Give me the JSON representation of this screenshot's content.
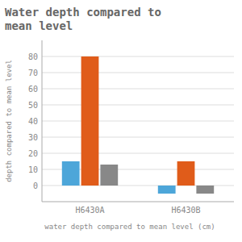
{
  "chart_data": {
    "type": "bar",
    "title": "Water depth compared to\nmean level",
    "xlabel": "water depth compared to mean level (cm)",
    "ylabel": "depth compared to mean level",
    "categories": [
      "H6430A",
      "H6430B"
    ],
    "series": [
      {
        "color": "#4da6d9",
        "values": [
          15,
          -5
        ]
      },
      {
        "color": "#e05c1a",
        "values": [
          80,
          15
        ]
      },
      {
        "color": "#888888",
        "values": [
          13,
          -5
        ]
      }
    ],
    "ylim": [
      -10,
      90
    ],
    "yticks": [
      0,
      10,
      20,
      30,
      40,
      50,
      60,
      70,
      80
    ],
    "grid": true
  }
}
